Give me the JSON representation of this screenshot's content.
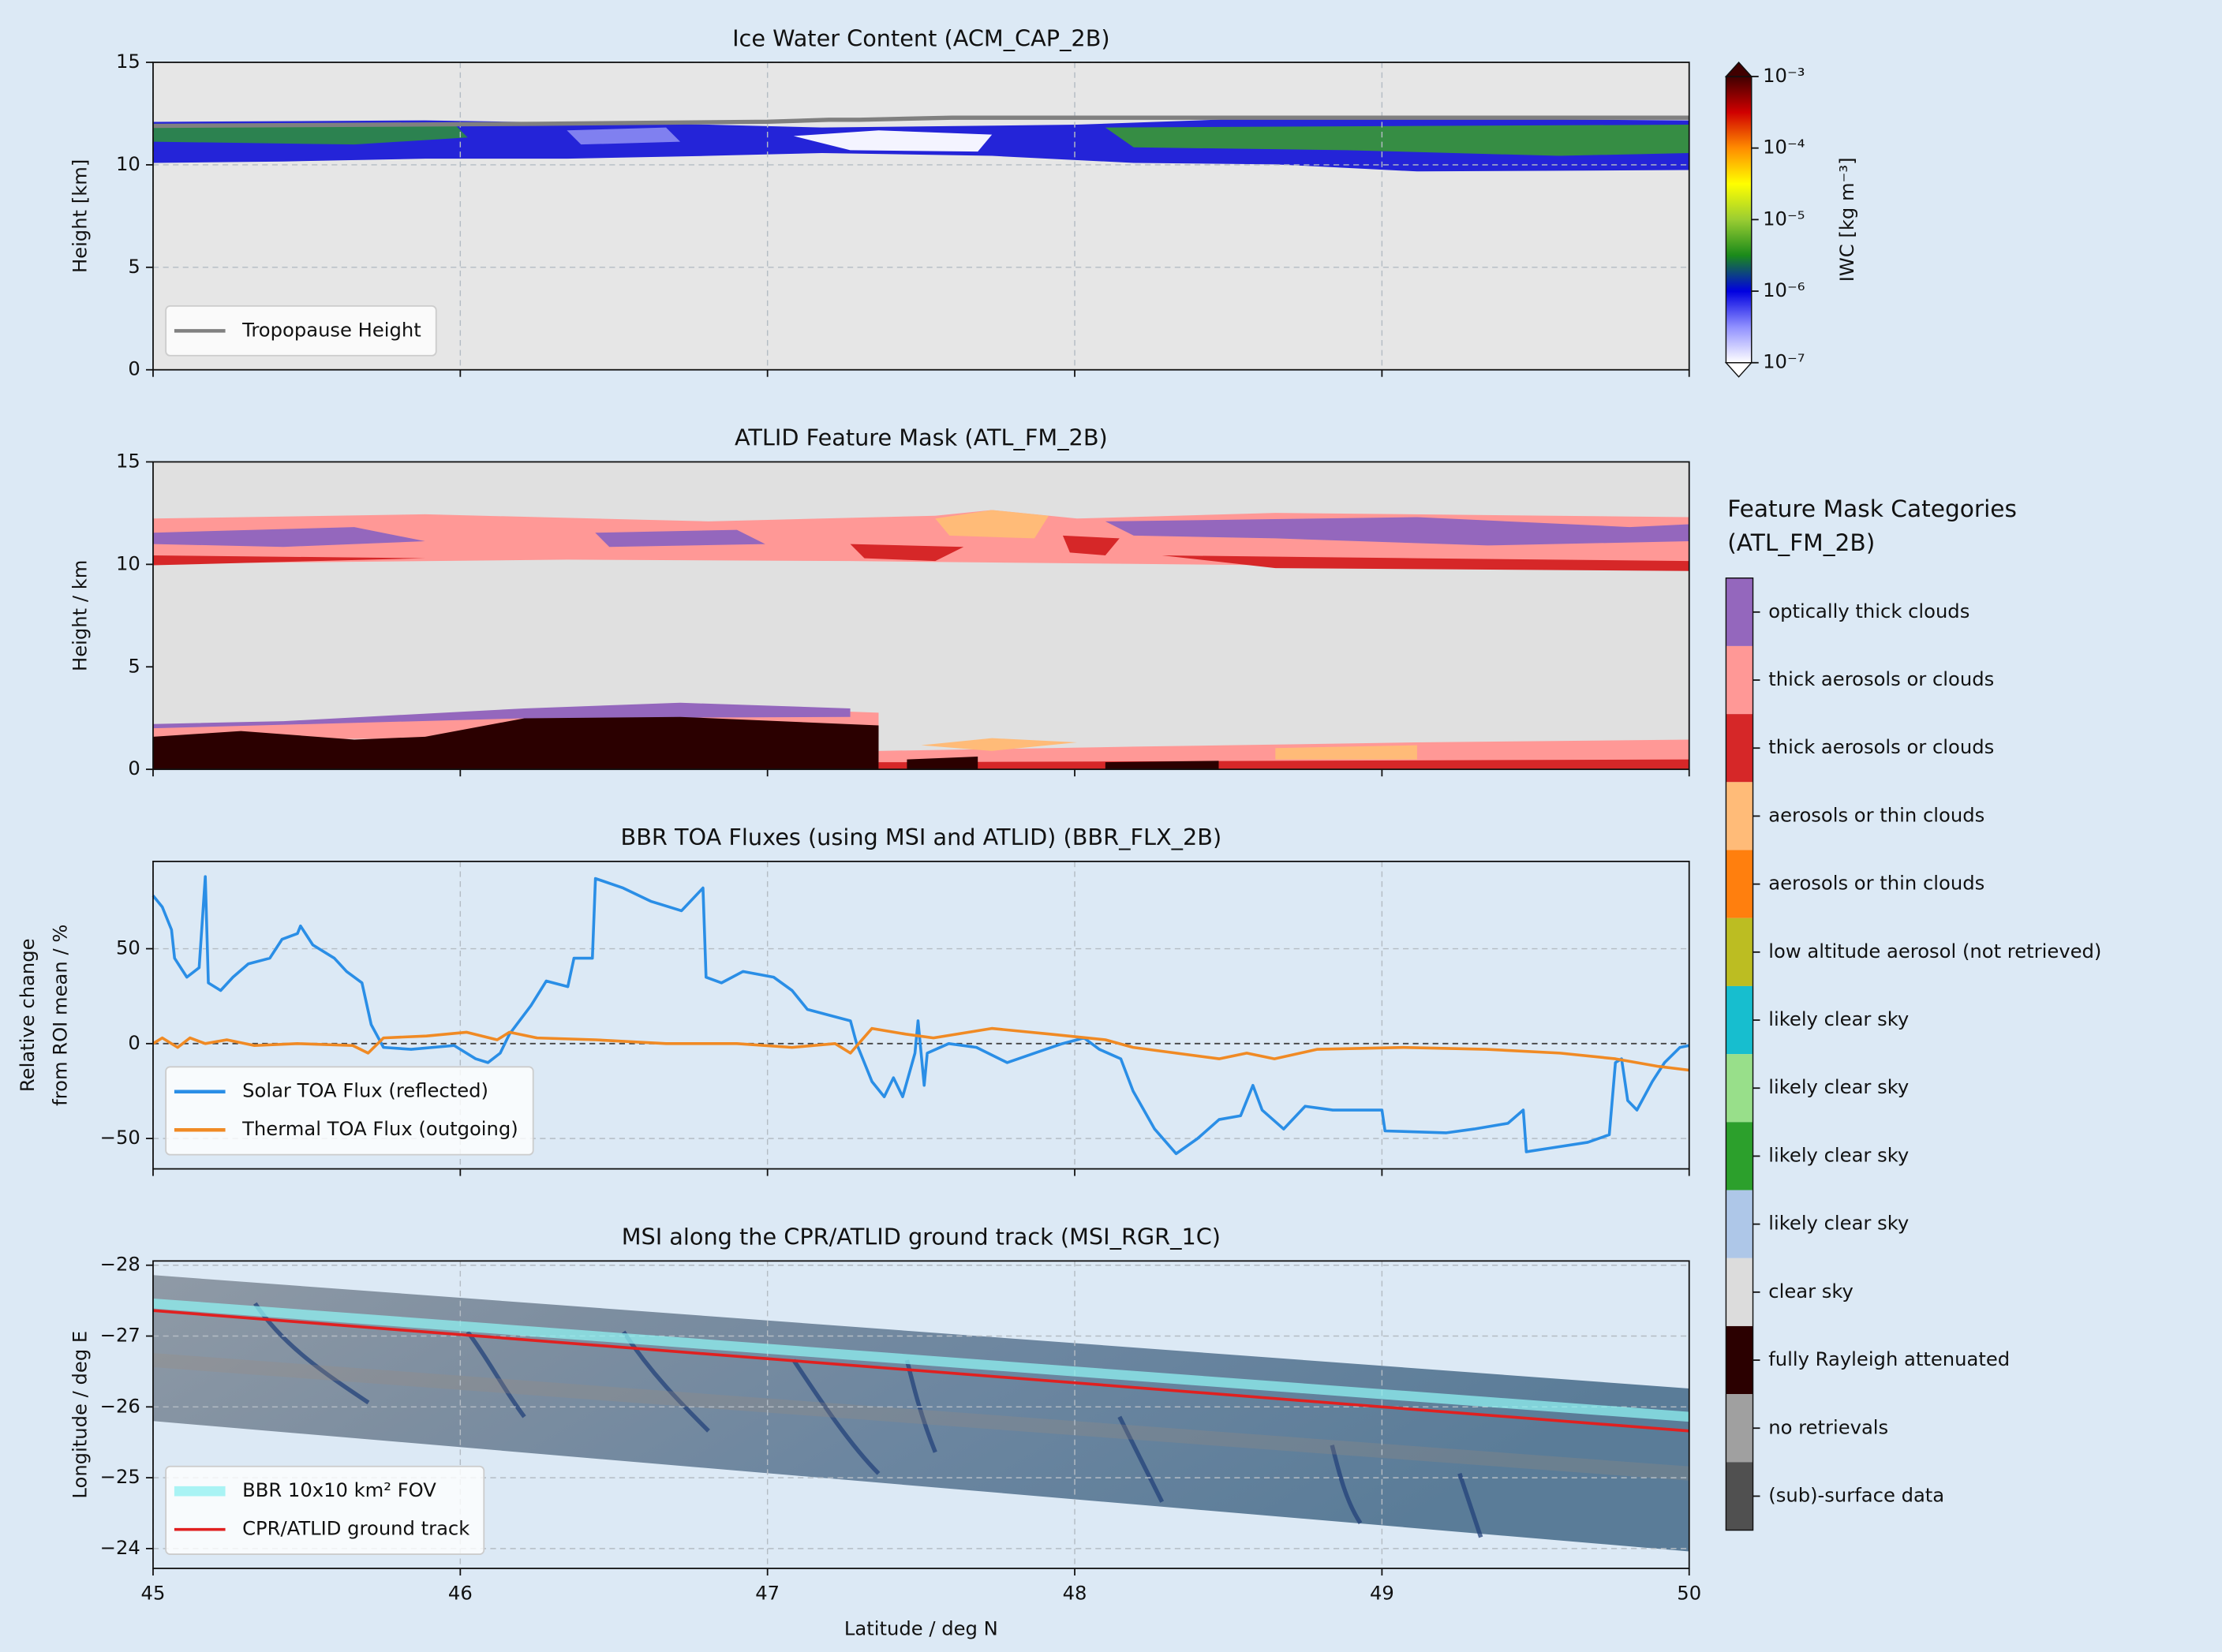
{
  "chart_data": [
    {
      "type": "heatmap",
      "title": "Ice Water Content (ACM_CAP_2B)",
      "ylabel": "Height [km]",
      "xlim": [
        45,
        50
      ],
      "xticks": [
        45,
        46,
        47,
        48,
        49,
        50
      ],
      "ylim": [
        0,
        15
      ],
      "yticks": [
        0,
        5,
        10,
        15
      ],
      "grid": true,
      "legend": "lower left",
      "series": [
        {
          "name": "Tropopause Height",
          "color": "#808080",
          "x": [
            45,
            46.25,
            47.0,
            47.2,
            47.3,
            47.6,
            50
          ],
          "values": [
            11.9,
            12.0,
            12.1,
            12.2,
            12.2,
            12.3,
            12.3
          ]
        }
      ],
      "colorbar": {
        "label": "IWC [kg m⁻³]",
        "scale": "log",
        "lim": [
          1e-07,
          0.001
        ],
        "ticks": [
          {
            "value": 1e-07,
            "label": "10⁻⁷"
          },
          {
            "value": 1e-06,
            "label": "10⁻⁶"
          },
          {
            "value": 1e-05,
            "label": "10⁻⁵"
          },
          {
            "value": 0.0001,
            "label": "10⁻⁴"
          },
          {
            "value": 0.001,
            "label": "10⁻³"
          }
        ],
        "colors": [
          "#ffffff",
          "#9090ff",
          "#0000e0",
          "#1a8a1a",
          "#9acd32",
          "#ffff00",
          "#ff8c00",
          "#d00000",
          "#400000"
        ]
      }
    },
    {
      "type": "heatmap",
      "title": "ATLID Feature Mask (ATL_FM_2B)",
      "ylabel": "Height / km",
      "xlim": [
        45,
        50
      ],
      "xticks": [
        45,
        46,
        47,
        48,
        49,
        50
      ],
      "ylim": [
        0,
        15
      ],
      "yticks": [
        0,
        5,
        10,
        15
      ],
      "grid": false,
      "categories_legend": {
        "title": [
          "Feature Mask Categories",
          "(ATL_FM_2B)"
        ],
        "categories": [
          "optically thick clouds",
          "thick aerosols or clouds",
          "thick aerosols or clouds",
          "aerosols or thin clouds",
          "aerosols or thin clouds",
          "low altitude aerosol (not retrieved)",
          "likely clear sky",
          "likely clear sky",
          "likely clear sky",
          "likely clear sky",
          "clear sky",
          "fully Rayleigh attenuated",
          "no retrievals",
          "(sub)-surface data"
        ],
        "colors": [
          "#9467bd",
          "#ff9896",
          "#d62728",
          "#ffbb78",
          "#ff7f0e",
          "#bcbd22",
          "#17becf",
          "#98df8a",
          "#2ca02c",
          "#aec7e8",
          "#dcdcdc",
          "#2b0000",
          "#a0a0a0",
          "#505050"
        ]
      }
    },
    {
      "type": "line",
      "title": "BBR TOA Fluxes (using MSI and ATLID) (BBR_FLX_2B)",
      "ylabel": [
        "Relative change",
        "from ROI mean / %"
      ],
      "xlim": [
        45,
        50
      ],
      "xticks": [
        45,
        46,
        47,
        48,
        49,
        50
      ],
      "ylim": [
        -66,
        96
      ],
      "yticks": [
        {
          "value": -50,
          "label": "−50"
        },
        0,
        50
      ],
      "grid": true,
      "hline": 0,
      "legend": "lower left",
      "series": [
        {
          "name": "Solar TOA Flux (reflected)",
          "color": "#2a8ee6",
          "x": [
            45.0,
            45.03,
            45.06,
            45.07,
            45.09,
            45.11,
            45.15,
            45.17,
            45.18,
            45.22,
            45.26,
            45.31,
            45.38,
            45.42,
            45.47,
            45.48,
            45.52,
            45.59,
            45.63,
            45.68,
            45.71,
            45.75,
            45.84,
            45.98,
            46.05,
            46.09,
            46.13,
            46.16,
            46.23,
            46.28,
            46.35,
            46.37,
            46.43,
            46.44,
            46.53,
            46.62,
            46.72,
            46.79,
            46.8,
            46.85,
            46.92,
            47.02,
            47.08,
            47.13,
            47.2,
            47.27,
            47.29,
            47.34,
            47.38,
            47.41,
            47.44,
            47.48,
            47.49,
            47.51,
            47.52,
            47.59,
            47.68,
            47.78,
            47.87,
            47.96,
            48.03,
            48.08,
            48.15,
            48.19,
            48.26,
            48.33,
            48.4,
            48.47,
            48.54,
            48.58,
            48.61,
            48.68,
            48.75,
            48.84,
            49.0,
            49.01,
            49.21,
            49.3,
            49.41,
            49.46,
            49.47,
            49.55,
            49.67,
            49.74,
            49.76,
            49.78,
            49.8,
            49.83,
            49.88,
            49.92,
            49.97,
            50.0
          ],
          "values": [
            78,
            72,
            60,
            45,
            40,
            35,
            40,
            88,
            32,
            28,
            35,
            42,
            45,
            55,
            58,
            62,
            52,
            45,
            38,
            32,
            10,
            -2,
            -3,
            -1,
            -8,
            -10,
            -5,
            5,
            20,
            33,
            30,
            45,
            45,
            87,
            82,
            75,
            70,
            82,
            35,
            32,
            38,
            35,
            28,
            18,
            15,
            12,
            0,
            -20,
            -28,
            -18,
            -28,
            -5,
            12,
            -22,
            -5,
            0,
            -2,
            -10,
            -5,
            0,
            3,
            -3,
            -8,
            -25,
            -45,
            -58,
            -50,
            -40,
            -38,
            -22,
            -35,
            -45,
            -33,
            -35,
            -35,
            -46,
            -47,
            -45,
            -42,
            -35,
            -57,
            -55,
            -52,
            -48,
            -10,
            -8,
            -30,
            -35,
            -20,
            -10,
            -2,
            -1
          ]
        },
        {
          "name": "Thermal TOA Flux (outgoing)",
          "color": "#f08a24",
          "x": [
            45.0,
            45.03,
            45.08,
            45.12,
            45.17,
            45.24,
            45.33,
            45.47,
            45.65,
            45.7,
            45.75,
            45.89,
            46.02,
            46.12,
            46.16,
            46.25,
            46.44,
            46.67,
            46.9,
            47.08,
            47.22,
            47.27,
            47.34,
            47.45,
            47.54,
            47.73,
            47.92,
            48.1,
            48.19,
            48.33,
            48.47,
            48.56,
            48.65,
            48.79,
            49.07,
            49.34,
            49.58,
            49.76,
            49.9,
            50.0
          ],
          "values": [
            0,
            3,
            -2,
            3,
            0,
            2,
            -1,
            0,
            -1,
            -5,
            3,
            4,
            6,
            2,
            6,
            3,
            2,
            0,
            0,
            -2,
            0,
            -5,
            8,
            5,
            3,
            8,
            5,
            2,
            -2,
            -5,
            -8,
            -5,
            -8,
            -3,
            -2,
            -3,
            -5,
            -8,
            -12,
            -14
          ]
        }
      ]
    },
    {
      "type": "image",
      "title": "MSI along the CPR/ATLID ground track (MSI_RGR_1C)",
      "xlabel": "Latitude / deg N",
      "ylabel": "Longitude / deg E",
      "xlim": [
        45,
        50
      ],
      "xticks": [
        45,
        46,
        47,
        48,
        49,
        50
      ],
      "ylim": [
        -23.72,
        -28.06
      ],
      "yticks": [
        {
          "value": -28,
          "label": "−28"
        },
        {
          "value": -27,
          "label": "−27"
        },
        {
          "value": -26,
          "label": "−26"
        },
        {
          "value": -25,
          "label": "−25"
        },
        {
          "value": -24,
          "label": "−24"
        }
      ],
      "grid": true,
      "legend": "lower left",
      "series": [
        {
          "name": "BBR 10x10 km² FOV",
          "color": "#8ff0f0",
          "x": [
            45,
            50
          ],
          "values": [
            -27.46,
            -25.86
          ]
        },
        {
          "name": "CPR/ATLID ground track",
          "color": "#e02020",
          "x": [
            45,
            50
          ],
          "values": [
            -27.36,
            -25.66
          ]
        }
      ]
    }
  ]
}
